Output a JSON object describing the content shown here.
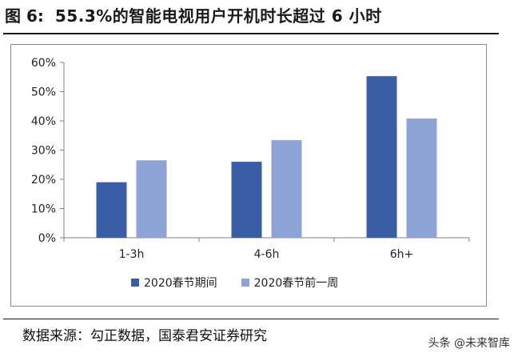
{
  "figure": {
    "number": "图 6:",
    "title": "55.3%的智能电视用户开机时长超过 6 小时"
  },
  "chart_data": {
    "type": "bar",
    "categories": [
      "1-3h",
      "4-6h",
      "6h+"
    ],
    "series": [
      {
        "name": "2020春节期间",
        "values": [
          19.0,
          26.0,
          55.3
        ],
        "color": "#3a5da8"
      },
      {
        "name": "2020春节前一周",
        "values": [
          26.5,
          33.4,
          40.8
        ],
        "color": "#8fa4d6"
      }
    ],
    "y_ticks": [
      "0%",
      "10%",
      "20%",
      "30%",
      "40%",
      "50%",
      "60%"
    ],
    "ylim": [
      0,
      60
    ],
    "grid": false,
    "legend_position": "bottom"
  },
  "source": "数据来源：勾正数据，国泰君安证券研究",
  "watermark": "头条 @未来智库"
}
